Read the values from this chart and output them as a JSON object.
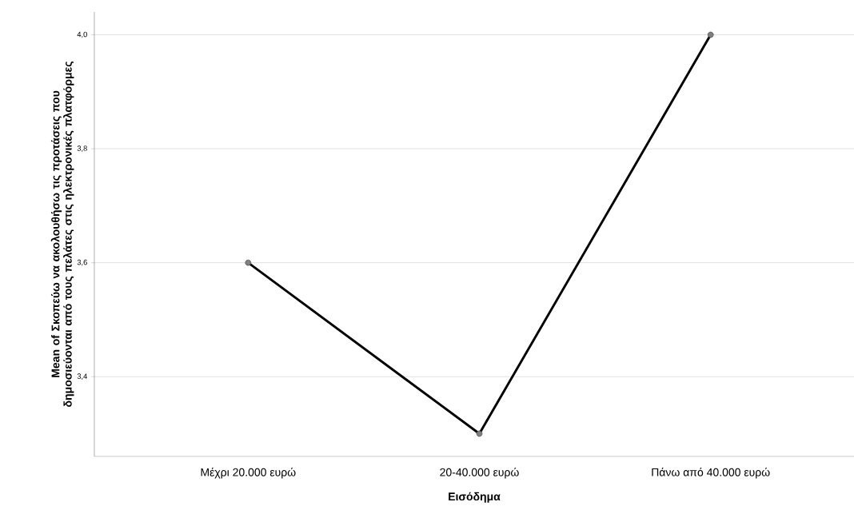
{
  "chart_data": {
    "type": "line",
    "categories": [
      "Μέχρι 20.000 ευρώ",
      "20-40.000 ευρώ",
      "Πάνω από 40.000 ευρώ"
    ],
    "series": [
      {
        "color": "#000000",
        "values": [
          3.6,
          3.3,
          4.0
        ]
      }
    ],
    "xlabel": "Εισόδημα",
    "ylabel": "Mean of Σκοπεύω να ακολουθήσω τις προτάσεις που δημοσιεύονται από τους πελάτες στις ηλεκτρονικές πλατφόρμες",
    "ylim": [
      3.26,
      4.04
    ],
    "yticks": [
      {
        "value": 3.4,
        "label": "3,4"
      },
      {
        "value": 3.6,
        "label": "3,6"
      },
      {
        "value": 3.8,
        "label": "3,8"
      },
      {
        "value": 4.0,
        "label": "4,0"
      }
    ],
    "grid": "y",
    "marker": "circle",
    "line_style": "solid"
  }
}
